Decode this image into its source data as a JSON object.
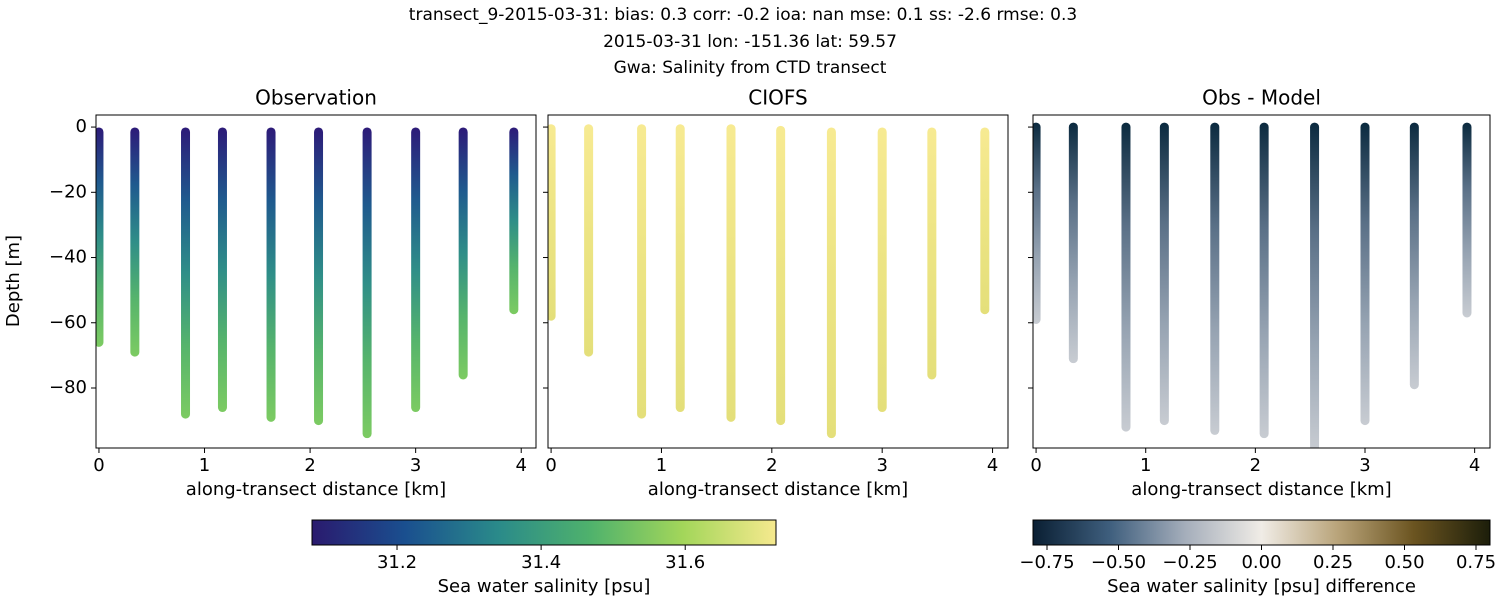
{
  "chart_data": {
    "type": "scatter",
    "title": [
      "transect_9-2015-03-31: bias: 0.3  corr: -0.2  ioa: nan  mse: 0.1  ss: -2.6  rmse: 0.3",
      "2015-03-31 lon: -151.36 lat: 59.57",
      "Gwa: Salinity from CTD transect"
    ],
    "xlabel": "along-transect distance [km]",
    "ylabel": "Depth [m]",
    "xlim": [
      -0.028,
      4.14
    ],
    "ylim": [
      -98.4,
      3.7
    ],
    "xticks": [
      0,
      1,
      2,
      3,
      4
    ],
    "yticks": [
      0,
      {
        "value": -20,
        "label": "−20"
      },
      {
        "value": -40,
        "label": "−40"
      },
      {
        "value": -60,
        "label": "−60"
      },
      {
        "value": -80,
        "label": "−80"
      }
    ],
    "panels": [
      {
        "title": "Observation",
        "x": [
          0,
          0.34,
          0.82,
          1.17,
          1.63,
          2.08,
          2.54,
          3.0,
          3.45,
          3.93
        ],
        "top": [
          -1.5,
          -1.5,
          -1.5,
          -1.5,
          -1.5,
          -1.5,
          -1.5,
          -1.5,
          -1.5,
          -1.5
        ],
        "bottom": [
          -66,
          -69,
          -88,
          -86,
          -89,
          -90,
          -94,
          -86,
          -76,
          -56
        ],
        "colors": [
          "#2d1a78",
          "#1f5a8e",
          "#2f8e88",
          "#56b46c",
          "#7ccb62"
        ]
      },
      {
        "title": "CIOFS",
        "x": [
          0,
          0.34,
          0.82,
          1.17,
          1.63,
          2.08,
          2.54,
          3.0,
          3.45,
          3.93
        ],
        "top": [
          -0.5,
          -0.5,
          -0.5,
          -0.5,
          -0.5,
          -1,
          -1.5,
          -1.5,
          -1.5,
          -1.5
        ],
        "bottom": [
          -58,
          -69,
          -88,
          -86,
          -89,
          -90,
          -94,
          -86,
          -76,
          -56
        ],
        "colors": [
          "#f7ea92",
          "#ece483",
          "#e4df7a"
        ]
      },
      {
        "title": "Obs - Model",
        "x": [
          0,
          0.34,
          0.82,
          1.17,
          1.63,
          2.08,
          2.54,
          3.0,
          3.45,
          3.93
        ],
        "top": [
          0,
          0,
          0,
          0,
          0,
          0,
          0,
          0,
          0,
          0
        ],
        "bottom": [
          -59,
          -71,
          -92,
          -90,
          -93,
          -94,
          -98.4,
          -90,
          -79,
          -57
        ],
        "colors": [
          "#0b2a3f",
          "#5a7087",
          "#96a3b2",
          "#c8ccd2"
        ]
      }
    ],
    "colorbars": [
      {
        "label": "Sea water salinity [psu]",
        "xlim": [
          31.082,
          31.726
        ],
        "xticks": [
          31.2,
          31.4,
          31.6
        ],
        "colors": [
          "#2a1a6e",
          "#1a4f8f",
          "#2a8a8a",
          "#4fb26c",
          "#a3d65a",
          "#f6e98e"
        ]
      },
      {
        "label": "Sea water salinity [psu] difference",
        "xlim": [
          -0.799,
          0.799
        ],
        "xticks": [
          {
            "value": -0.75,
            "label": "−0.75"
          },
          {
            "value": -0.5,
            "label": "−0.50"
          },
          {
            "value": -0.25,
            "label": "−0.25"
          },
          {
            "value": 0,
            "label": "0.00"
          },
          {
            "value": 0.25,
            "label": "0.25"
          },
          {
            "value": 0.5,
            "label": "0.50"
          },
          {
            "value": 0.75,
            "label": "0.75"
          }
        ],
        "colors": [
          "#0a1f33",
          "#3e5e7d",
          "#a5aebb",
          "#f0ece6",
          "#b9a47a",
          "#6b5420",
          "#1c1e0a"
        ]
      }
    ]
  }
}
